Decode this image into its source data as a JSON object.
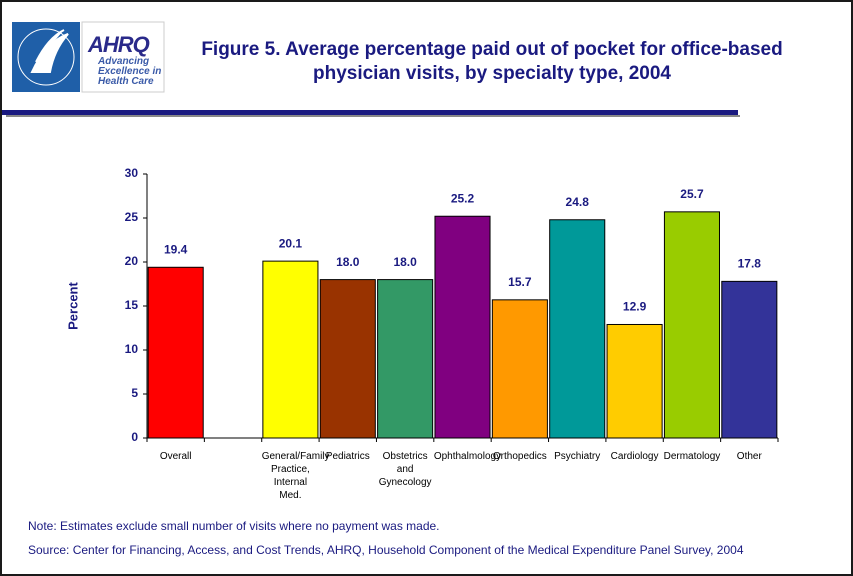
{
  "logo": {
    "name": "AHRQ",
    "tagline": "Advancing Excellence in Health Care"
  },
  "chart_data": {
    "type": "bar",
    "title": "Figure 5. Average percentage paid out of pocket for office-based physician visits, by specialty type, 2004",
    "y_label": "Percent",
    "categories": [
      "Overall",
      null,
      "General/Family Practice, Internal Med.",
      "Pediatrics",
      "Obstetrics and Gynecology",
      "Ophthalmology",
      "Orthopedics",
      "Psychiatry",
      "Cardiology",
      "Dermatology",
      "Other"
    ],
    "values": [
      19.4,
      null,
      20.1,
      18.0,
      18.0,
      25.2,
      15.7,
      24.8,
      12.9,
      25.7,
      17.8
    ],
    "value_labels": [
      "19.4",
      null,
      "20.1",
      "18.0",
      "18.0",
      "25.2",
      "15.7",
      "24.8",
      "12.9",
      "25.7",
      "17.8"
    ],
    "colors": [
      "#ff0000",
      null,
      "#ffff00",
      "#993300",
      "#339966",
      "#800080",
      "#ff9900",
      "#009999",
      "#ffcc00",
      "#99cc00",
      "#333399"
    ],
    "ylim": [
      0,
      30
    ],
    "yticks": [
      0,
      5,
      10,
      15,
      20,
      25,
      30
    ],
    "grid": false,
    "note": "Note:  Estimates exclude small number of visits where no payment was made.",
    "source": "Source: Center for Financing, Access, and Cost Trends, AHRQ, Household Component of the Medical Expenditure Panel Survey, 2004"
  }
}
